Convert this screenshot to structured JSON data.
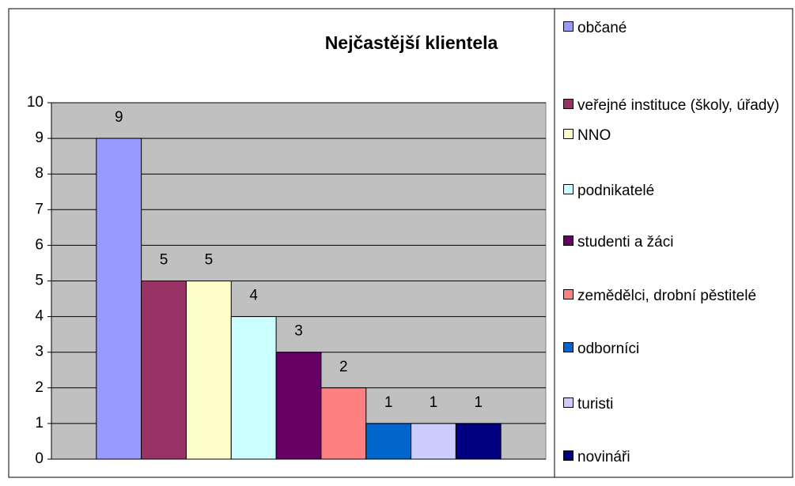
{
  "chart_data": {
    "type": "bar",
    "title": "Nejčastější klientela",
    "categories": [
      "občané",
      "veřejné instituce (školy, úřady)",
      "NNO",
      "podnikatelé",
      "studenti a žáci",
      "zemědělci, drobní pěstitelé",
      "odborníci",
      "turisti",
      "novináři"
    ],
    "values": [
      9,
      5,
      5,
      4,
      3,
      2,
      1,
      1,
      1
    ],
    "colors": [
      "#9999ff",
      "#993366",
      "#ffffcc",
      "#ccffff",
      "#660066",
      "#ff8080",
      "#0066cc",
      "#ccccff",
      "#000080"
    ],
    "ylim": [
      0,
      10
    ],
    "yticks": [
      0,
      1,
      2,
      3,
      4,
      5,
      6,
      7,
      8,
      9,
      10
    ],
    "grid": true,
    "legend": "right"
  }
}
